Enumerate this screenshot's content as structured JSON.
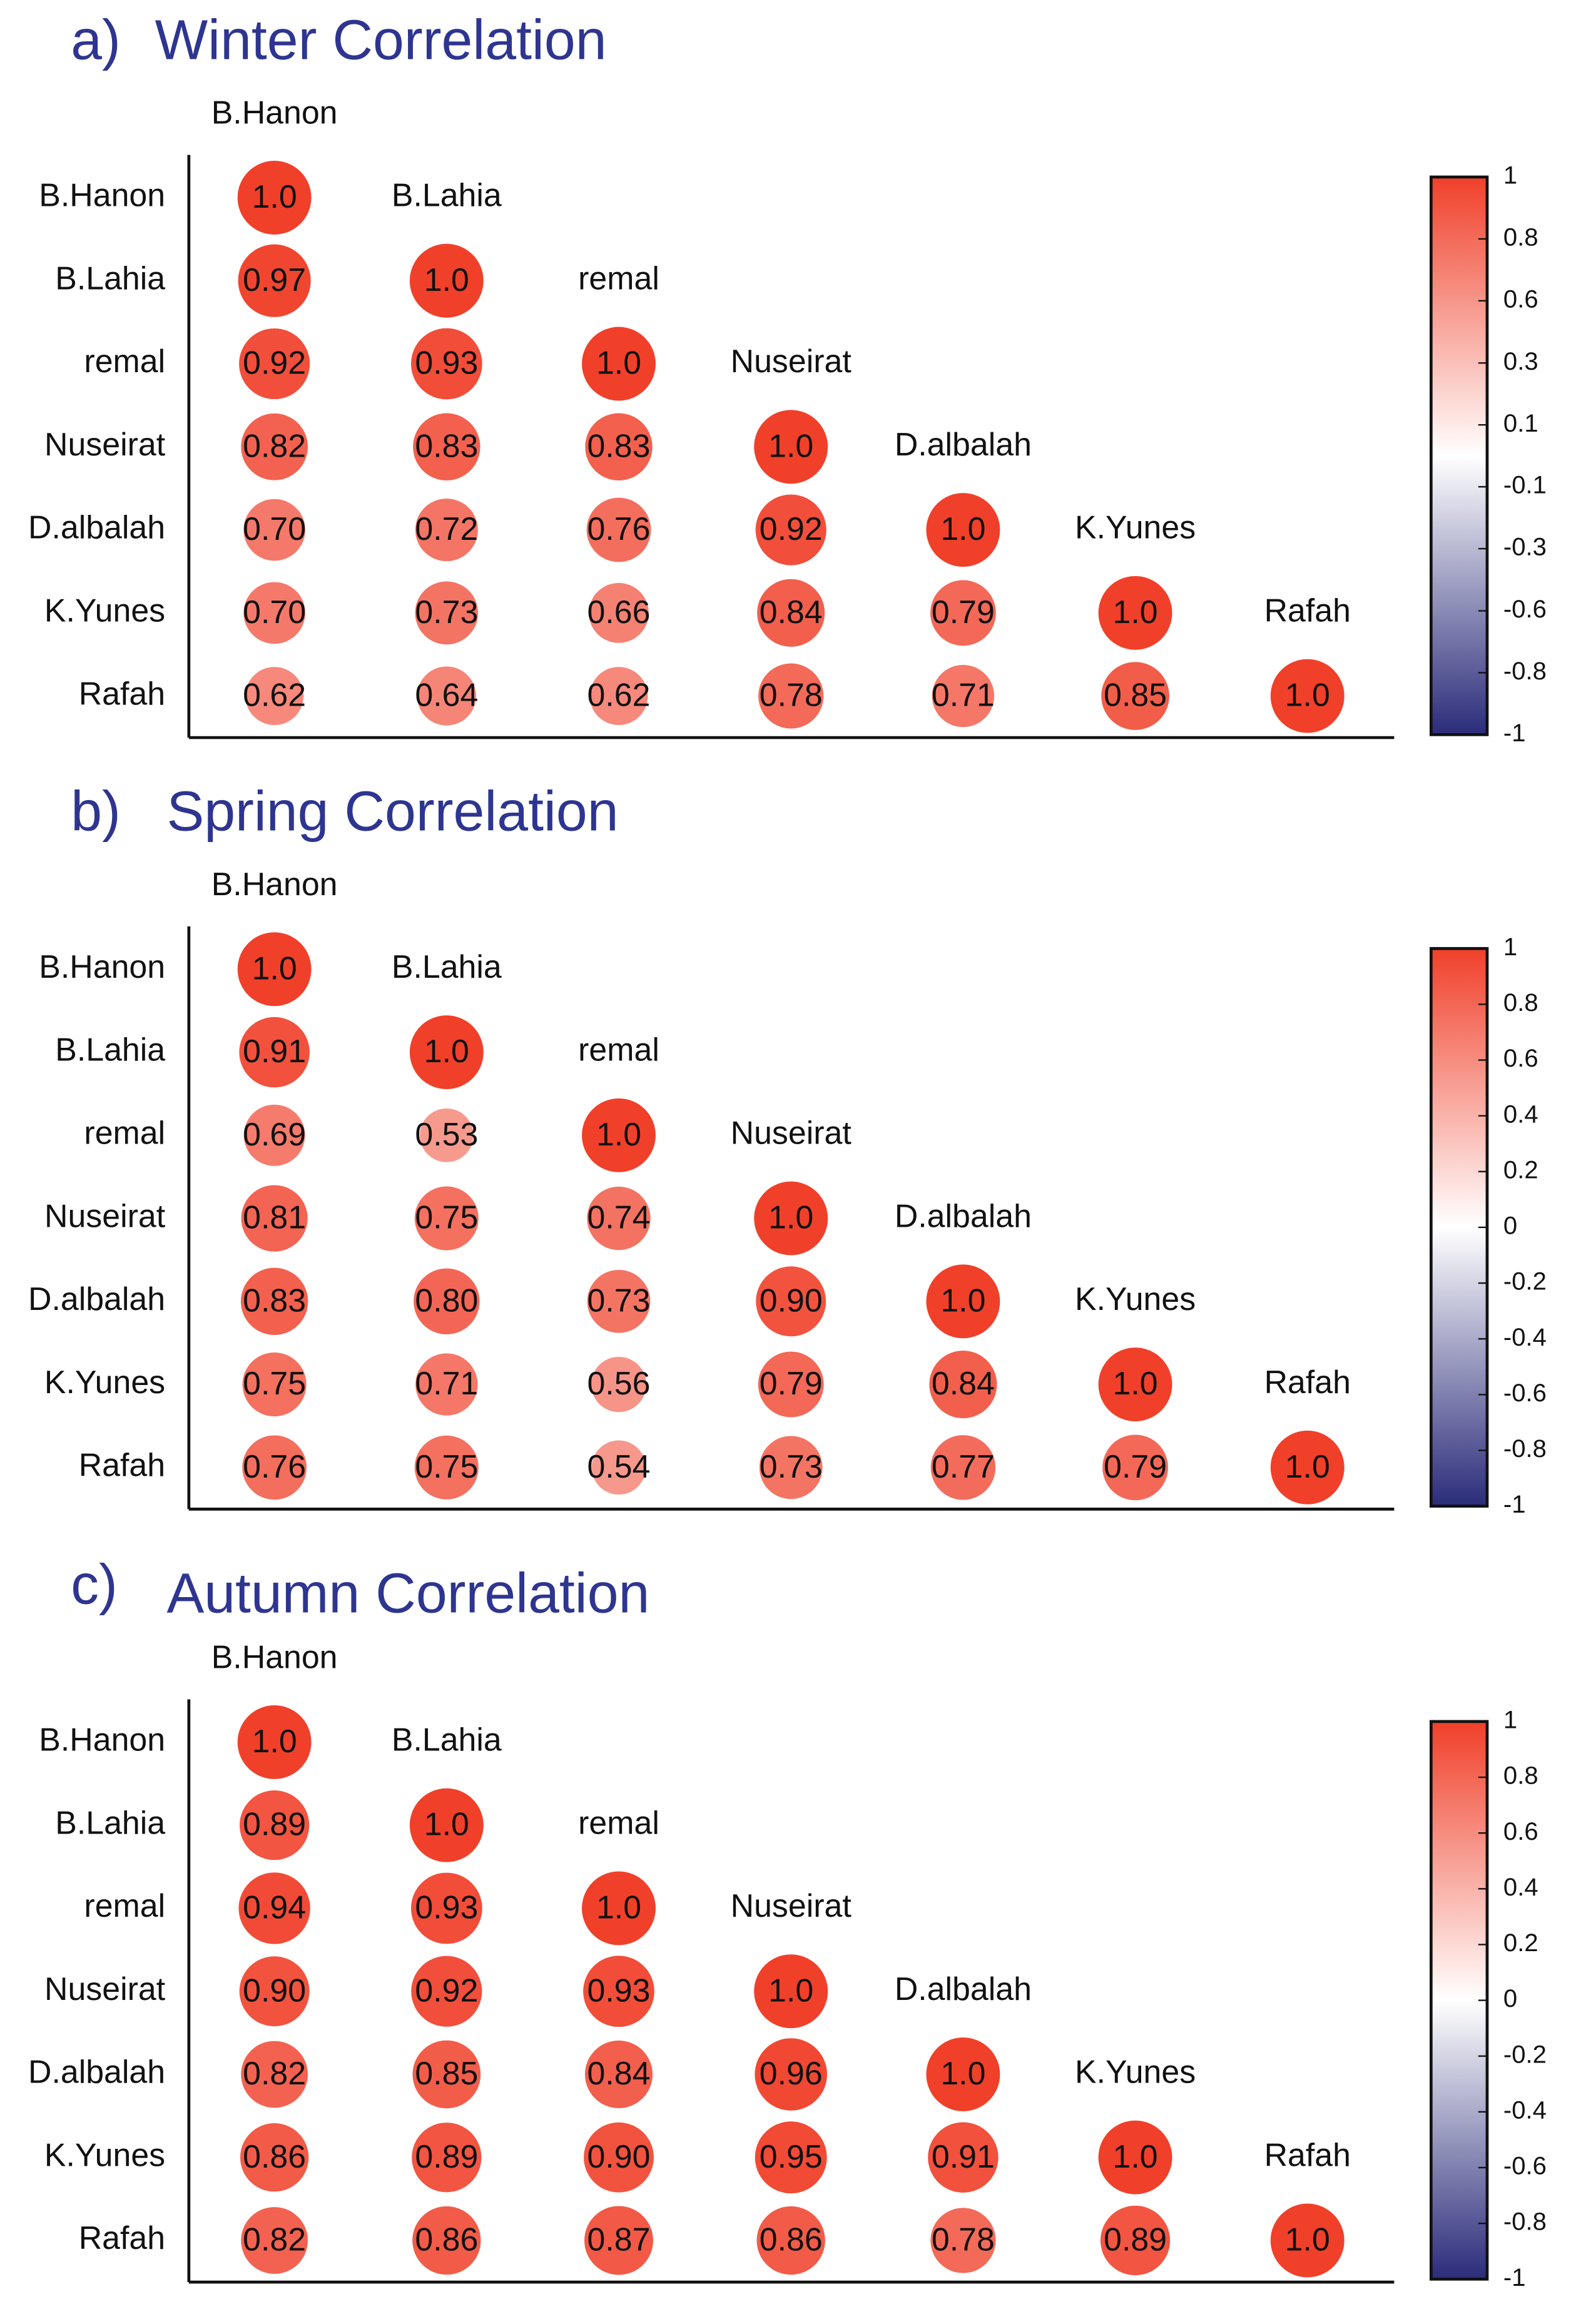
{
  "chart_data": [
    {
      "type": "corrplot",
      "panel": "a)",
      "title": "Winter Correlation",
      "categories": [
        "B.Hanon",
        "B.Lahia",
        "remal",
        "Nuseirat",
        "D.albalah",
        "K.Yunes",
        "Rafah"
      ],
      "values": [
        [
          1.0
        ],
        [
          0.97,
          1.0
        ],
        [
          0.92,
          0.93,
          1.0
        ],
        [
          0.82,
          0.83,
          0.83,
          1.0
        ],
        [
          0.7,
          0.72,
          0.76,
          0.92,
          1.0
        ],
        [
          0.7,
          0.73,
          0.66,
          0.84,
          0.79,
          1.0
        ],
        [
          0.62,
          0.64,
          0.62,
          0.78,
          0.71,
          0.85,
          1.0
        ]
      ],
      "value_labels": [
        [
          "1.0"
        ],
        [
          "0.97",
          "1.0"
        ],
        [
          "0.92",
          "0.93",
          "1.0"
        ],
        [
          "0.82",
          "0.83",
          "0.83",
          "1.0"
        ],
        [
          "0.70",
          "0.72",
          "0.76",
          "0.92",
          "1.0"
        ],
        [
          "0.70",
          "0.73",
          "0.66",
          "0.84",
          "0.79",
          "1.0"
        ],
        [
          "0.62",
          "0.64",
          "0.62",
          "0.78",
          "0.71",
          "0.85",
          "1.0"
        ]
      ],
      "zlim": [
        -1,
        1
      ],
      "zticks": [
        1,
        {
          "value": 0.778,
          "label": "0.8"
        },
        {
          "value": 0.556,
          "label": "0.6"
        },
        {
          "value": 0.333,
          "label": "0.3"
        },
        {
          "value": 0.111,
          "label": "0.1"
        },
        {
          "value": -0.111,
          "label": "-0.1"
        },
        {
          "value": -0.333,
          "label": "-0.3"
        },
        {
          "value": -0.556,
          "label": "-0.6"
        },
        {
          "value": -0.778,
          "label": "-0.8"
        },
        -1
      ],
      "colors": [
        "#2b2c7a",
        "#ffffff",
        "#f0402a"
      ]
    },
    {
      "type": "corrplot",
      "panel": "b)",
      "title": "Spring Correlation",
      "categories": [
        "B.Hanon",
        "B.Lahia",
        "remal",
        "Nuseirat",
        "D.albalah",
        "K.Yunes",
        "Rafah"
      ],
      "values": [
        [
          1.0
        ],
        [
          0.91,
          1.0
        ],
        [
          0.69,
          0.53,
          1.0
        ],
        [
          0.81,
          0.75,
          0.74,
          1.0
        ],
        [
          0.83,
          0.8,
          0.73,
          0.9,
          1.0
        ],
        [
          0.75,
          0.71,
          0.56,
          0.79,
          0.84,
          1.0
        ],
        [
          0.76,
          0.75,
          0.54,
          0.73,
          0.77,
          0.79,
          1.0
        ]
      ],
      "value_labels": [
        [
          "1.0"
        ],
        [
          "0.91",
          "1.0"
        ],
        [
          "0.69",
          "0.53",
          "1.0"
        ],
        [
          "0.81",
          "0.75",
          "0.74",
          "1.0"
        ],
        [
          "0.83",
          "0.80",
          "0.73",
          "0.90",
          "1.0"
        ],
        [
          "0.75",
          "0.71",
          "0.56",
          "0.79",
          "0.84",
          "1.0"
        ],
        [
          "0.76",
          "0.75",
          "0.54",
          "0.73",
          "0.77",
          "0.79",
          "1.0"
        ]
      ],
      "zlim": [
        -1,
        1
      ],
      "zticks": [
        1,
        0.8,
        0.6,
        0.4,
        0.2,
        0,
        -0.2,
        -0.4,
        -0.6,
        -0.8,
        -1
      ],
      "colors": [
        "#2b2c7a",
        "#ffffff",
        "#f0402a"
      ]
    },
    {
      "type": "corrplot",
      "panel": "c)",
      "title": "Autumn Correlation",
      "categories": [
        "B.Hanon",
        "B.Lahia",
        "remal",
        "Nuseirat",
        "D.albalah",
        "K.Yunes",
        "Rafah"
      ],
      "values": [
        [
          1.0
        ],
        [
          0.89,
          1.0
        ],
        [
          0.94,
          0.93,
          1.0
        ],
        [
          0.9,
          0.92,
          0.93,
          1.0
        ],
        [
          0.82,
          0.85,
          0.84,
          0.96,
          1.0
        ],
        [
          0.86,
          0.89,
          0.9,
          0.95,
          0.91,
          1.0
        ],
        [
          0.82,
          0.86,
          0.87,
          0.86,
          0.78,
          0.89,
          1.0
        ]
      ],
      "value_labels": [
        [
          "1.0"
        ],
        [
          "0.89",
          "1.0"
        ],
        [
          "0.94",
          "0.93",
          "1.0"
        ],
        [
          "0.90",
          "0.92",
          "0.93",
          "1.0"
        ],
        [
          "0.82",
          "0.85",
          "0.84",
          "0.96",
          "1.0"
        ],
        [
          "0.86",
          "0.89",
          "0.90",
          "0.95",
          "0.91",
          "1.0"
        ],
        [
          "0.82",
          "0.86",
          "0.87",
          "0.86",
          "0.78",
          "0.89",
          "1.0"
        ]
      ],
      "zlim": [
        -1,
        1
      ],
      "zticks": [
        1,
        0.8,
        0.6,
        0.4,
        0.2,
        0,
        -0.2,
        -0.4,
        -0.6,
        -0.8,
        -1
      ],
      "colors": [
        "#2b2c7a",
        "#ffffff",
        "#f0402a"
      ]
    }
  ]
}
